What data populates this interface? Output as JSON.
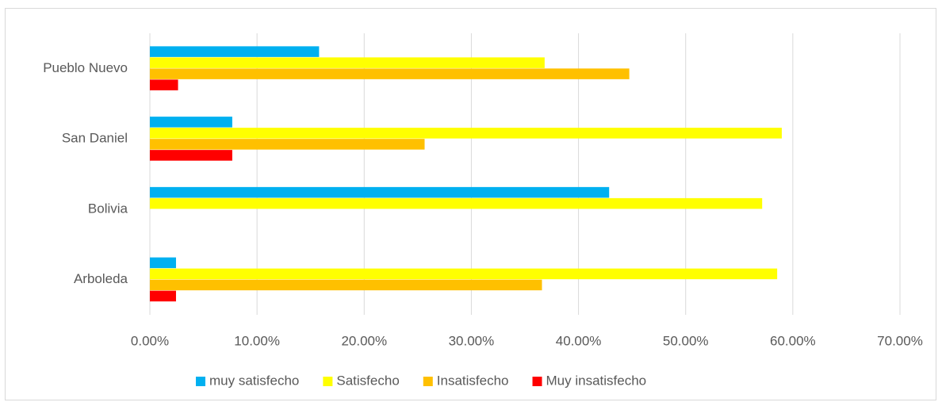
{
  "chart_data": {
    "type": "hbar",
    "categories": [
      "Pueblo Nuevo",
      "San Daniel",
      "Bolivia",
      "Arboleda"
    ],
    "series": [
      {
        "name": "muy satisfecho",
        "color": "#00b0f0",
        "values": [
          15.79,
          7.69,
          42.86,
          2.44
        ]
      },
      {
        "name": "Satisfecho",
        "color": "#ffff00",
        "values": [
          36.84,
          58.97,
          57.14,
          58.54
        ]
      },
      {
        "name": "Insatisfecho",
        "color": "#ffc000",
        "values": [
          44.74,
          25.64,
          0,
          36.59
        ]
      },
      {
        "name": "Muy insatisfecho",
        "color": "#ff0000",
        "values": [
          2.63,
          7.69,
          0,
          2.44
        ]
      }
    ],
    "xlim": [
      0,
      70
    ],
    "xticks": [
      {
        "value": 0,
        "label": "0.00%"
      },
      {
        "value": 10,
        "label": "10.00%"
      },
      {
        "value": 20,
        "label": "20.00%"
      },
      {
        "value": 30,
        "label": "30.00%"
      },
      {
        "value": 40,
        "label": "40.00%"
      },
      {
        "value": 50,
        "label": "50.00%"
      },
      {
        "value": 60,
        "label": "60.00%"
      },
      {
        "value": 70,
        "label": "70.00%"
      }
    ],
    "grid": true,
    "legend": "bottom"
  }
}
